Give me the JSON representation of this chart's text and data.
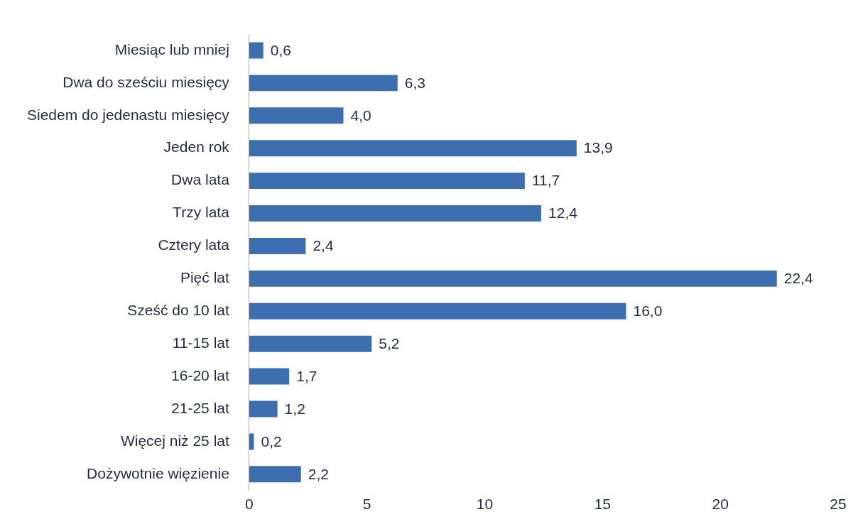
{
  "chart_data": {
    "type": "bar",
    "orientation": "horizontal",
    "categories": [
      "Miesiąc lub mniej",
      "Dwa do sześciu miesięcy",
      "Siedem do jedenastu miesięcy",
      "Jeden rok",
      "Dwa lata",
      "Trzy lata",
      "Cztery lata",
      "Pięć lat",
      "Sześć do 10 lat",
      "11-15 lat",
      "16-20 lat",
      "21-25 lat",
      "Więcej niż 25 lat",
      "Dożywotnie więzienie"
    ],
    "values": [
      0.6,
      6.3,
      4.0,
      13.9,
      11.7,
      12.4,
      2.4,
      22.4,
      16.0,
      5.2,
      1.7,
      1.2,
      0.2,
      2.2
    ],
    "value_labels": [
      "0,6",
      "6,3",
      "4,0",
      "13,9",
      "11,7",
      "12,4",
      "2,4",
      "22,4",
      "16,0",
      "5,2",
      "1,7",
      "1,2",
      "0,2",
      "2,2"
    ],
    "color": "#3d6eaf",
    "xlim": [
      0,
      25
    ],
    "xticks": [
      0,
      5,
      10,
      15,
      20,
      25
    ],
    "grid": false,
    "legend": false
  }
}
